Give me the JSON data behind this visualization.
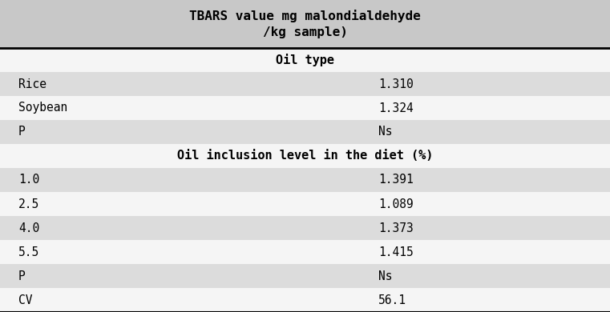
{
  "col_header": "TBARS value mg malondialdehyde\n/kg sample)",
  "section1_header": "Oil type",
  "section2_header": "Oil inclusion level in the diet (%)",
  "rows": [
    {
      "label": "Rice",
      "value": "1.310"
    },
    {
      "label": "Soybean",
      "value": "1.324"
    },
    {
      "label": "P",
      "value": "Ns"
    }
  ],
  "rows2": [
    {
      "label": "1.0",
      "value": "1.391"
    },
    {
      "label": "2.5",
      "value": "1.089"
    },
    {
      "label": "4.0",
      "value": "1.373"
    },
    {
      "label": "5.5",
      "value": "1.415"
    },
    {
      "label": "P",
      "value": "Ns"
    },
    {
      "label": "CV",
      "value": "56.1"
    }
  ],
  "color_header_bg": "#c8c8c8",
  "color_row_light": "#dcdcdc",
  "color_row_white": "#f5f5f5",
  "color_text": "#000000",
  "font_size_header": 11.5,
  "font_size_section": 11,
  "font_size_row": 10.5
}
